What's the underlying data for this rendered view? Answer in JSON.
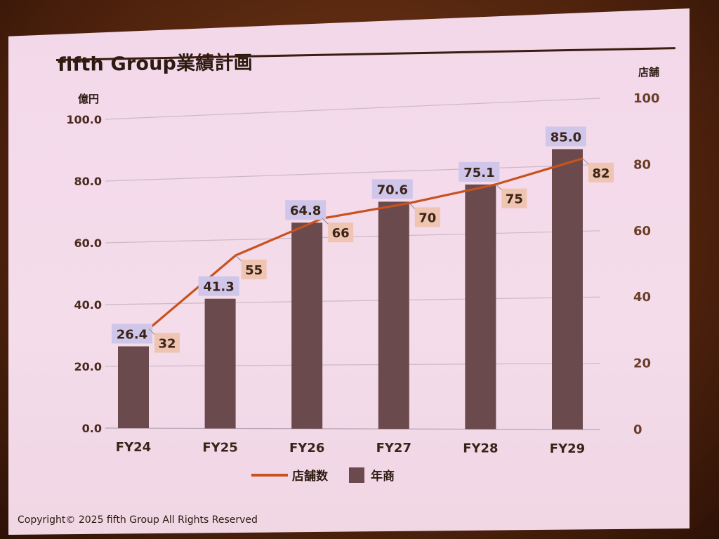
{
  "slide": {
    "title": "fifth Group業績計画",
    "copyright": "Copyright© 2025 fifth Group All Rights Reserved"
  },
  "colors": {
    "bar": "#6b4a4d",
    "line": "#c8521e",
    "axis_left_text": "#4a2a20",
    "axis_right_text": "#6a3f2a",
    "bar_label_bg": "#cfc6ea",
    "line_label_bg": "#efc4b0",
    "grid": "#cdb9c6"
  },
  "chart_data": {
    "type": "bar",
    "categories": [
      "FY24",
      "FY25",
      "FY26",
      "FY27",
      "FY28",
      "FY29"
    ],
    "series": [
      {
        "name": "年商",
        "type": "bar",
        "axis": "left",
        "values": [
          26.4,
          41.3,
          64.8,
          70.6,
          75.1,
          85.0
        ],
        "labels": [
          "26.4",
          "41.3",
          "64.8",
          "70.6",
          "75.1",
          "85.0"
        ]
      },
      {
        "name": "店舗数",
        "type": "line",
        "axis": "right",
        "values": [
          32,
          55,
          66,
          70,
          75,
          82
        ],
        "labels": [
          "32",
          "55",
          "66",
          "70",
          "75",
          "82"
        ]
      }
    ],
    "left_axis": {
      "label": "億円",
      "range": [
        0,
        100
      ],
      "ticks": [
        "0.0",
        "20.0",
        "40.0",
        "60.0",
        "80.0",
        "100.0"
      ]
    },
    "right_axis": {
      "label": "店舗",
      "range": [
        0,
        100
      ],
      "ticks": [
        "0",
        "20",
        "40",
        "60",
        "80",
        "100"
      ]
    },
    "grid": true,
    "legend_position": "bottom"
  }
}
